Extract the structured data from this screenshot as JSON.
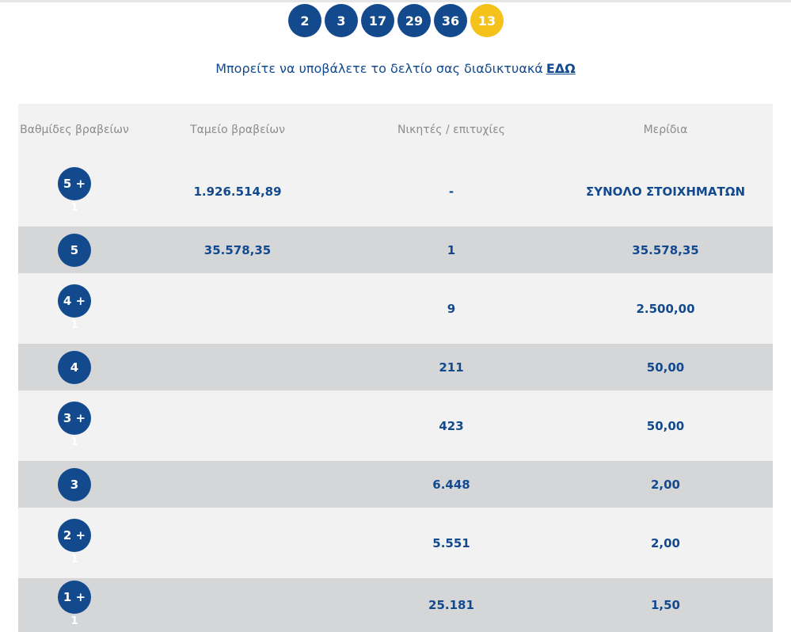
{
  "winning_numbers": [
    "2",
    "3",
    "17",
    "29",
    "36"
  ],
  "joker_number": "13",
  "colors": {
    "primary": "#134a8e",
    "joker": "#f4c21a",
    "row_light": "#f2f2f2",
    "row_dark": "#d5d6d8"
  },
  "submit": {
    "text": "Μπορείτε να υποβάλετε το δελτίο σας διαδικτυακά",
    "link": "ΕΔΩ"
  },
  "table": {
    "headers": {
      "tier": "Βαθμίδες βραβείων",
      "fund": "Ταμείο βραβείων",
      "winners": "Νικητές / επιτυχίες",
      "share": "Μερίδια"
    },
    "rows": [
      {
        "tier": "5 +",
        "sub": "1",
        "fund": "1.926.514,89",
        "winners": "-",
        "share": "ΣΥΝΟΛΟ ΣΤΟΙΧΗΜΑΤΩΝ"
      },
      {
        "tier": "5",
        "sub": "",
        "fund": "35.578,35",
        "winners": "1",
        "share": "35.578,35"
      },
      {
        "tier": "4 +",
        "sub": "1",
        "fund": "",
        "winners": "9",
        "share": "2.500,00"
      },
      {
        "tier": "4",
        "sub": "",
        "fund": "",
        "winners": "211",
        "share": "50,00"
      },
      {
        "tier": "3 +",
        "sub": "1",
        "fund": "",
        "winners": "423",
        "share": "50,00"
      },
      {
        "tier": "3",
        "sub": "",
        "fund": "",
        "winners": "6.448",
        "share": "2,00"
      },
      {
        "tier": "2 +",
        "sub": "1",
        "fund": "",
        "winners": "5.551",
        "share": "2,00"
      },
      {
        "tier": "1 +",
        "sub": "1",
        "fund": "",
        "winners": "25.181",
        "share": "1,50"
      }
    ]
  }
}
